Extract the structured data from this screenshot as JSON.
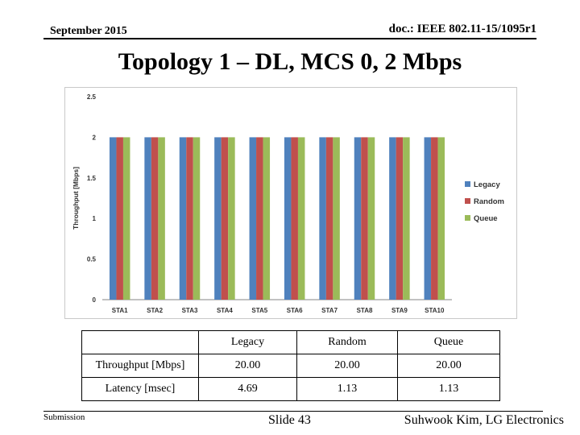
{
  "header": {
    "date": "September 2015",
    "doc_id": "doc.: IEEE 802.11-15/1095r1"
  },
  "slide_title": "Topology 1 – DL, MCS 0, 2 Mbps",
  "chart_data": {
    "type": "bar",
    "categories": [
      "STA1",
      "STA2",
      "STA3",
      "STA4",
      "STA5",
      "STA6",
      "STA7",
      "STA8",
      "STA9",
      "STA10"
    ],
    "series": [
      {
        "name": "Legacy",
        "color": "#4f81bd",
        "values": [
          2,
          2,
          2,
          2,
          2,
          2,
          2,
          2,
          2,
          2
        ]
      },
      {
        "name": "Random",
        "color": "#c0504d",
        "values": [
          2,
          2,
          2,
          2,
          2,
          2,
          2,
          2,
          2,
          2
        ]
      },
      {
        "name": "Queue",
        "color": "#9bbb59",
        "values": [
          2,
          2,
          2,
          2,
          2,
          2,
          2,
          2,
          2,
          2
        ]
      }
    ],
    "ylabel": "Throughput [Mbps]",
    "ylim": [
      0,
      2.5
    ],
    "yticks": [
      "0",
      "0.5",
      "1",
      "1.5",
      "2",
      "2.5"
    ],
    "grid": false,
    "legend": "right"
  },
  "table": {
    "header": [
      "",
      "Legacy",
      "Random",
      "Queue"
    ],
    "rows": [
      [
        "Throughput [Mbps]",
        "20.00",
        "20.00",
        "20.00"
      ],
      [
        "Latency [msec]",
        "4.69",
        "1.13",
        "1.13"
      ]
    ]
  },
  "footer": {
    "submission": "Submission",
    "slide": "Slide 43",
    "author": "Suhwook Kim, LG Electronics"
  }
}
